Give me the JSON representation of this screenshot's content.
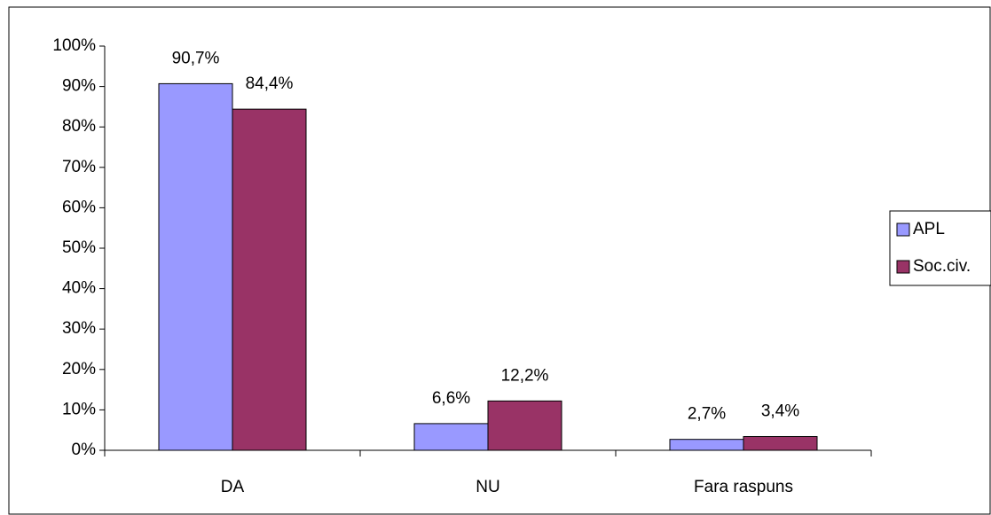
{
  "chart_data": {
    "type": "bar",
    "categories": [
      "DA",
      "NU",
      "Fara raspuns"
    ],
    "series": [
      {
        "name": "APL",
        "color": "#9999ff",
        "values": [
          90.7,
          6.6,
          2.7
        ],
        "value_labels": [
          "90,7%",
          "6,6%",
          "2,7%"
        ]
      },
      {
        "name": "Soc.civ.",
        "color": "#993366",
        "values": [
          84.4,
          12.2,
          3.4
        ],
        "value_labels": [
          "84,4%",
          "12,2%",
          "3,4%"
        ]
      }
    ],
    "ylim": [
      0,
      100
    ],
    "yticks": [
      {
        "value": 0,
        "label": "0%"
      },
      {
        "value": 10,
        "label": "10%"
      },
      {
        "value": 20,
        "label": "20%"
      },
      {
        "value": 30,
        "label": "30%"
      },
      {
        "value": 40,
        "label": "40%"
      },
      {
        "value": 50,
        "label": "50%"
      },
      {
        "value": 60,
        "label": "60%"
      },
      {
        "value": 70,
        "label": "70%"
      },
      {
        "value": 80,
        "label": "80%"
      },
      {
        "value": 90,
        "label": "90%"
      },
      {
        "value": 100,
        "label": "100%"
      }
    ],
    "grid": false,
    "legend": "right"
  }
}
